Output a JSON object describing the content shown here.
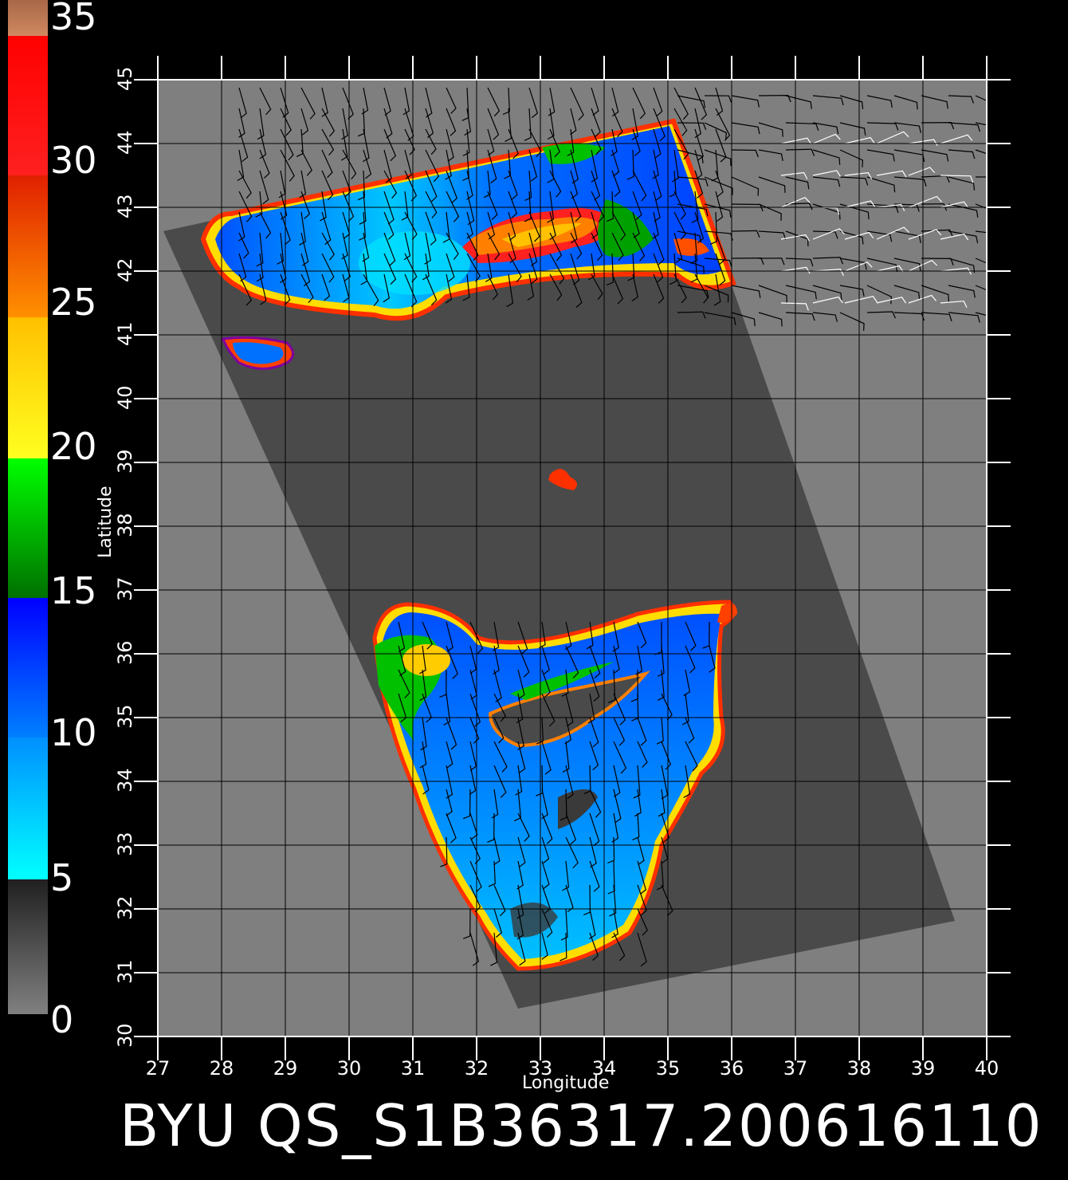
{
  "colorbar": {
    "unit_description": "wind speed scale",
    "labels": [
      "35",
      "30",
      "25",
      "20",
      "15",
      "10",
      "5",
      "0"
    ],
    "colors": {
      "top": "#c87850",
      "red": "#ff1010",
      "orange": "#ff8000",
      "yellow": "#ffdd00",
      "green": "#00dd00",
      "blue": "#0040ff",
      "cyan": "#00e0ff",
      "gray_dark": "#303030",
      "gray_light": "#808080"
    }
  },
  "axes": {
    "xlabel": "Longitude",
    "ylabel": "Latitude",
    "x_ticks": [
      "27",
      "28",
      "29",
      "30",
      "31",
      "32",
      "33",
      "34",
      "35",
      "36",
      "37",
      "38",
      "39",
      "40"
    ],
    "y_ticks": [
      "30",
      "31",
      "32",
      "33",
      "34",
      "35",
      "36",
      "37",
      "38",
      "39",
      "40",
      "41",
      "42",
      "43",
      "44",
      "45"
    ],
    "lon_range": [
      27,
      40
    ],
    "lat_range": [
      30,
      45
    ]
  },
  "map": {
    "background_color": "#7f7f7f",
    "swath_color": "#4a4a4a",
    "land_color": "#808080"
  },
  "footer": {
    "product_id": "BYU QS_S1B36317.200616110"
  }
}
